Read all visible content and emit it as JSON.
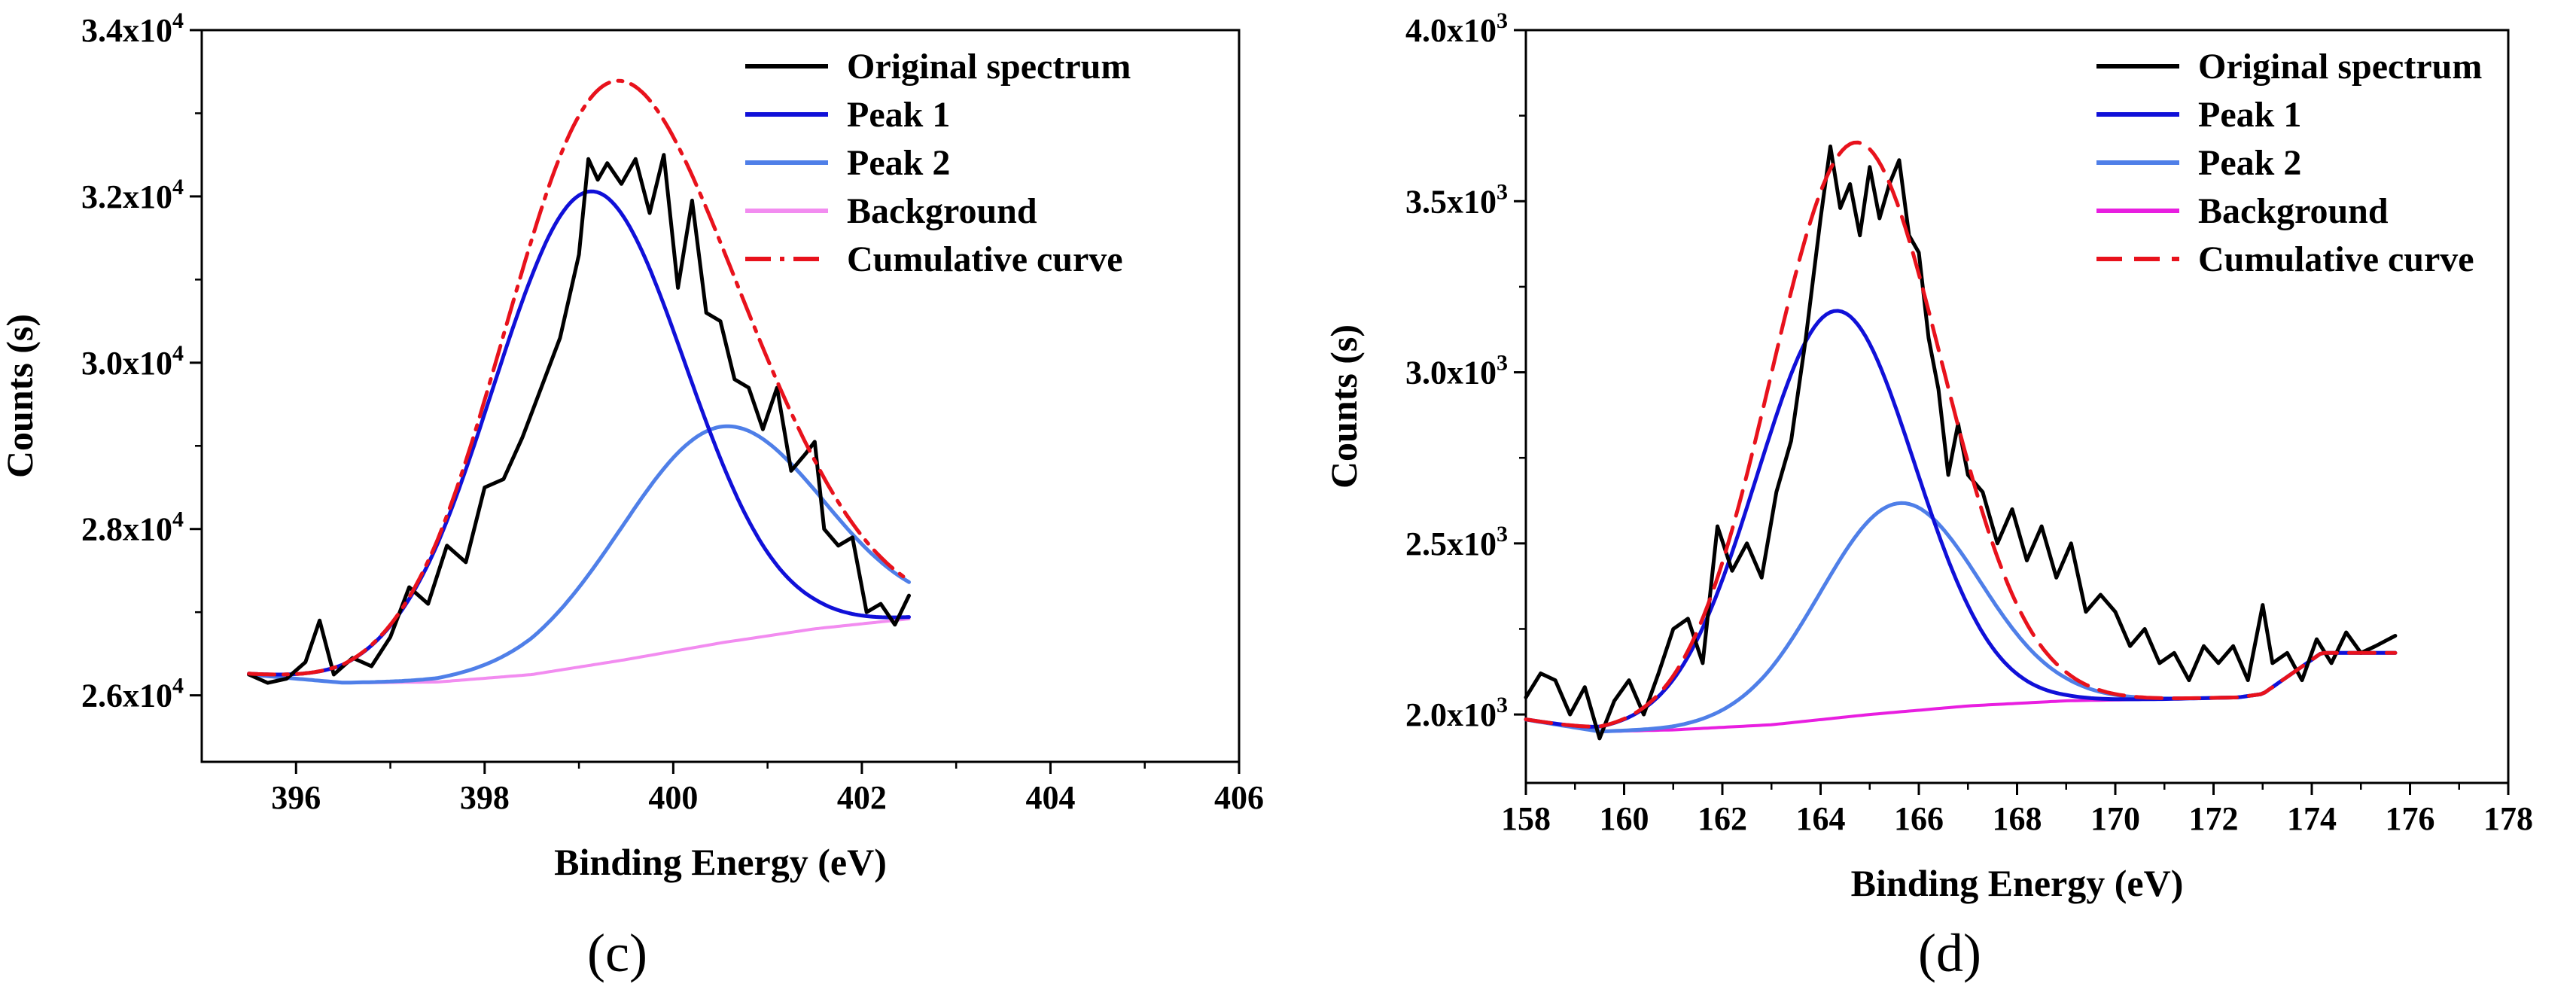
{
  "chart_data": [
    {
      "type": "line",
      "panel_label": "(c)",
      "xlabel": "Binding Energy (eV)",
      "ylabel": "Counts (s)",
      "xlim": [
        395,
        406
      ],
      "ylim": [
        25200,
        34000
      ],
      "xticks": [
        396,
        398,
        400,
        402,
        404,
        406
      ],
      "yticks": [
        26000,
        28000,
        30000,
        32000,
        34000
      ],
      "y_exponent": 4,
      "y_mantissa_digits": 1,
      "legend_position": "top-right",
      "series": [
        {
          "name": "Original spectrum",
          "color": "#000000",
          "style": "solid",
          "x": [
            395.5,
            395.7,
            395.9,
            396.1,
            396.25,
            396.4,
            396.6,
            396.8,
            397.0,
            397.2,
            397.4,
            397.6,
            397.8,
            398.0,
            398.2,
            398.4,
            398.6,
            398.8,
            399.0,
            399.1,
            399.2,
            399.3,
            399.45,
            399.6,
            399.75,
            399.9,
            400.05,
            400.2,
            400.35,
            400.5,
            400.65,
            400.8,
            400.95,
            401.1,
            401.25,
            401.4,
            401.5,
            401.6,
            401.75,
            401.9,
            402.05,
            402.2,
            402.35,
            402.5
          ],
          "y": [
            26250,
            26150,
            26200,
            26400,
            26900,
            26250,
            26450,
            26350,
            26700,
            27300,
            27100,
            27800,
            27600,
            28500,
            28600,
            29100,
            29700,
            30300,
            31300,
            32450,
            32200,
            32400,
            32150,
            32450,
            31800,
            32500,
            30900,
            31950,
            30600,
            30500,
            29800,
            29700,
            29200,
            29700,
            28700,
            28900,
            29050,
            28000,
            27800,
            27900,
            27000,
            27100,
            26850,
            27200
          ]
        },
        {
          "name": "Peak 1",
          "color": "#1010d8",
          "style": "solid",
          "center": 399.1,
          "amplitude": 5700,
          "fwhm": 2.4
        },
        {
          "name": "Peak 2",
          "color": "#4f7fe8",
          "style": "solid",
          "center": 400.5,
          "amplitude": 2600,
          "fwhm": 2.5
        },
        {
          "name": "Background",
          "color": "#f28cf0",
          "style": "solid",
          "x": [
            395.5,
            396.5,
            397.5,
            398.5,
            399.5,
            400.5,
            401.5,
            402.5
          ],
          "y": [
            26250,
            26150,
            26160,
            26250,
            26430,
            26630,
            26800,
            26920
          ]
        },
        {
          "name": "Cumulative curve",
          "color": "#e8121c",
          "style": "dash-dot"
        }
      ]
    },
    {
      "type": "line",
      "panel_label": "(d)",
      "xlabel": "Binding Energy (eV)",
      "ylabel": "Counts (s)",
      "xlim": [
        158,
        178
      ],
      "ylim": [
        1800,
        4000
      ],
      "xticks": [
        158,
        160,
        162,
        164,
        166,
        168,
        170,
        172,
        174,
        176,
        178
      ],
      "yticks": [
        2000,
        2500,
        3000,
        3500,
        4000
      ],
      "y_exponent": 3,
      "y_mantissa_digits": 1,
      "legend_position": "top-right",
      "series": [
        {
          "name": "Original spectrum",
          "color": "#000000",
          "style": "solid",
          "x": [
            158.0,
            158.3,
            158.6,
            158.9,
            159.2,
            159.5,
            159.8,
            160.1,
            160.4,
            160.7,
            161.0,
            161.3,
            161.6,
            161.9,
            162.2,
            162.5,
            162.8,
            163.1,
            163.4,
            163.7,
            164.0,
            164.2,
            164.4,
            164.6,
            164.8,
            165.0,
            165.2,
            165.4,
            165.6,
            165.8,
            166.0,
            166.2,
            166.4,
            166.6,
            166.8,
            167.0,
            167.3,
            167.6,
            167.9,
            168.2,
            168.5,
            168.8,
            169.1,
            169.4,
            169.7,
            170.0,
            170.3,
            170.6,
            170.9,
            171.2,
            171.5,
            171.8,
            172.1,
            172.4,
            172.7,
            173.0,
            173.2,
            173.5,
            173.8,
            174.1,
            174.4,
            174.7,
            175.0,
            175.3,
            175.7
          ],
          "y": [
            2050,
            2120,
            2100,
            2000,
            2080,
            1930,
            2040,
            2100,
            2000,
            2120,
            2250,
            2280,
            2150,
            2550,
            2420,
            2500,
            2400,
            2650,
            2800,
            3100,
            3450,
            3660,
            3480,
            3550,
            3400,
            3600,
            3450,
            3550,
            3620,
            3400,
            3350,
            3100,
            2950,
            2700,
            2850,
            2700,
            2650,
            2500,
            2600,
            2450,
            2550,
            2400,
            2500,
            2300,
            2350,
            2300,
            2200,
            2250,
            2150,
            2180,
            2100,
            2200,
            2150,
            2200,
            2100,
            2320,
            2150,
            2180,
            2100,
            2220,
            2150,
            2240,
            2180,
            2200,
            2230
          ]
        },
        {
          "name": "Peak 1",
          "color": "#1010d8",
          "style": "solid",
          "center": 164.3,
          "amplitude": 1190,
          "fwhm": 3.8
        },
        {
          "name": "Peak 2",
          "color": "#4f7fe8",
          "style": "solid",
          "center": 165.6,
          "amplitude": 610,
          "fwhm": 3.8
        },
        {
          "name": "Background",
          "color": "#e81ee0",
          "style": "solid",
          "x": [
            158.0,
            159.5,
            161.0,
            163.0,
            165.0,
            167.0,
            169.0,
            171.0,
            172.5,
            173.0,
            174.2
          ],
          "y": [
            1985,
            1950,
            1955,
            1970,
            2000,
            2025,
            2040,
            2045,
            2050,
            2060,
            2180
          ]
        },
        {
          "name": "Cumulative curve",
          "color": "#e8121c",
          "style": "dash"
        }
      ]
    }
  ]
}
